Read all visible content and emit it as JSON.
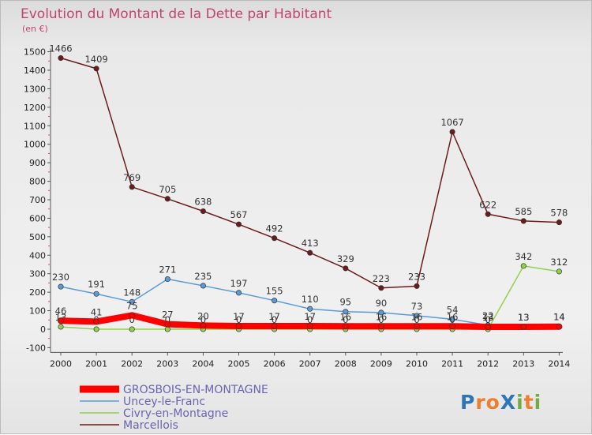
{
  "colors": {
    "grosbois": "#ff0000",
    "uncey": "#5b9bd5",
    "civry": "#92d050",
    "marcellois": "#6b1b1b",
    "title": "#c3426f",
    "legend_text": "#6a63b0"
  },
  "logo": {
    "text": "ProXiti"
  },
  "chart_data": {
    "type": "line",
    "title": "Evolution du Montant de la Dette par Habitant",
    "subtitle": "(en €)",
    "x": [
      "2000",
      "2001",
      "2002",
      "2003",
      "2004",
      "2005",
      "2006",
      "2007",
      "2008",
      "2009",
      "2010",
      "2011",
      "2012",
      "2013",
      "2014"
    ],
    "ylim": [
      -100,
      1500
    ],
    "yticks": [
      -100,
      0,
      100,
      200,
      300,
      400,
      500,
      600,
      700,
      800,
      900,
      1000,
      1100,
      1200,
      1300,
      1400,
      1500
    ],
    "grid": false,
    "legend_position": "bottom-left",
    "series": [
      {
        "name": "Marcellois",
        "key": "marcellois",
        "values": [
          1466,
          1409,
          769,
          705,
          638,
          567,
          492,
          413,
          329,
          223,
          233,
          1067,
          622,
          585,
          578
        ]
      },
      {
        "name": "Uncey-le-Franc",
        "key": "uncey",
        "values": [
          230,
          191,
          148,
          271,
          235,
          197,
          155,
          110,
          95,
          90,
          73,
          54,
          22,
          13,
          14
        ]
      },
      {
        "name": "Civry-en-Montagne",
        "key": "civry",
        "values": [
          13,
          0,
          0,
          0,
          0,
          0,
          0,
          0,
          0,
          0,
          0,
          0,
          0,
          342,
          312
        ]
      },
      {
        "name": "GROSBOIS-EN-MONTAGNE",
        "key": "grosbois",
        "values": [
          46,
          41,
          75,
          27,
          20,
          17,
          17,
          17,
          16,
          16,
          16,
          16,
          13,
          13,
          14
        ]
      }
    ]
  }
}
